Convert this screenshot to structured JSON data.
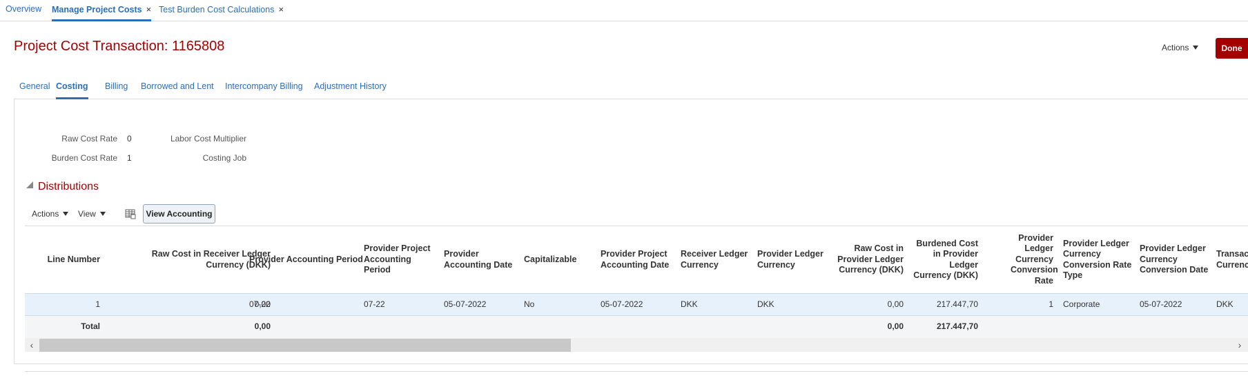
{
  "top_tabs": [
    {
      "label": "Overview",
      "closable": false
    },
    {
      "label": "Manage Project Costs",
      "closable": true,
      "active": true
    },
    {
      "label": "Test Burden Cost Calculations",
      "closable": true
    }
  ],
  "close_glyph": "×",
  "page_title": "Project Cost Transaction: 1165808",
  "header_actions_label": "Actions",
  "done_label": "Done",
  "sub_tabs": [
    "General",
    "Costing",
    "Billing",
    "Borrowed and Lent",
    "Intercompany Billing",
    "Adjustment History"
  ],
  "active_sub_tab": "Costing",
  "fields": {
    "raw_cost_rate": {
      "label": "Raw Cost Rate",
      "value": "0"
    },
    "burden_cost_rate": {
      "label": "Burden Cost Rate",
      "value": "1"
    },
    "labor_cost_multiplier": {
      "label": "Labor Cost Multiplier",
      "value": ""
    },
    "costing_job": {
      "label": "Costing Job",
      "value": ""
    }
  },
  "distributions": {
    "title": "Distributions",
    "toolbar": {
      "actions_label": "Actions",
      "view_label": "View",
      "freeze_icon": "freeze-columns-icon",
      "view_accounting_label": "View Accounting"
    },
    "columns": [
      {
        "key": "line",
        "label": "Line Number"
      },
      {
        "key": "raw_recv",
        "label": "Raw Cost in Receiver Ledger Currency (DKK)"
      },
      {
        "key": "prov_acct_period",
        "label": "Provider Accounting Period"
      },
      {
        "key": "prov_proj_acct_period",
        "label": "Provider Project Accounting Period"
      },
      {
        "key": "prov_acct_date",
        "label": "Provider Accounting Date"
      },
      {
        "key": "capitalizable",
        "label": "Capitalizable"
      },
      {
        "key": "prov_proj_acct_date",
        "label": "Provider Project Accounting Date"
      },
      {
        "key": "recv_ledger_curr",
        "label": "Receiver Ledger Currency"
      },
      {
        "key": "prov_ledger_curr",
        "label": "Provider Ledger Currency"
      },
      {
        "key": "raw_prov",
        "label": "Raw Cost in Provider Ledger Currency (DKK)"
      },
      {
        "key": "burd_prov",
        "label": "Burdened Cost in Provider Ledger Currency (DKK)"
      },
      {
        "key": "conv_rate",
        "label": "Provider Ledger Currency Conversion Rate"
      },
      {
        "key": "conv_rate_type",
        "label": "Provider Ledger Currency Conversion Rate Type"
      },
      {
        "key": "conv_date",
        "label": "Provider Ledger Currency Conversion Date"
      },
      {
        "key": "trans_curr",
        "label": "Transaction Currency"
      }
    ],
    "rows": [
      {
        "line": "1",
        "raw_recv": "0,00",
        "prov_acct_period": "07-22",
        "prov_proj_acct_period": "07-22",
        "prov_acct_date": "05-07-2022",
        "capitalizable": "No",
        "prov_proj_acct_date": "05-07-2022",
        "recv_ledger_curr": "DKK",
        "prov_ledger_curr": "DKK",
        "raw_prov": "0,00",
        "burd_prov": "217.447,70",
        "conv_rate": "1",
        "conv_rate_type": "Corporate",
        "conv_date": "05-07-2022",
        "trans_curr": "DKK"
      }
    ],
    "total": {
      "label": "Total",
      "raw_recv": "0,00",
      "raw_prov": "0,00",
      "burd_prov": "217.447,70"
    }
  },
  "scroll_left_glyph": "‹",
  "scroll_right_glyph": "›"
}
